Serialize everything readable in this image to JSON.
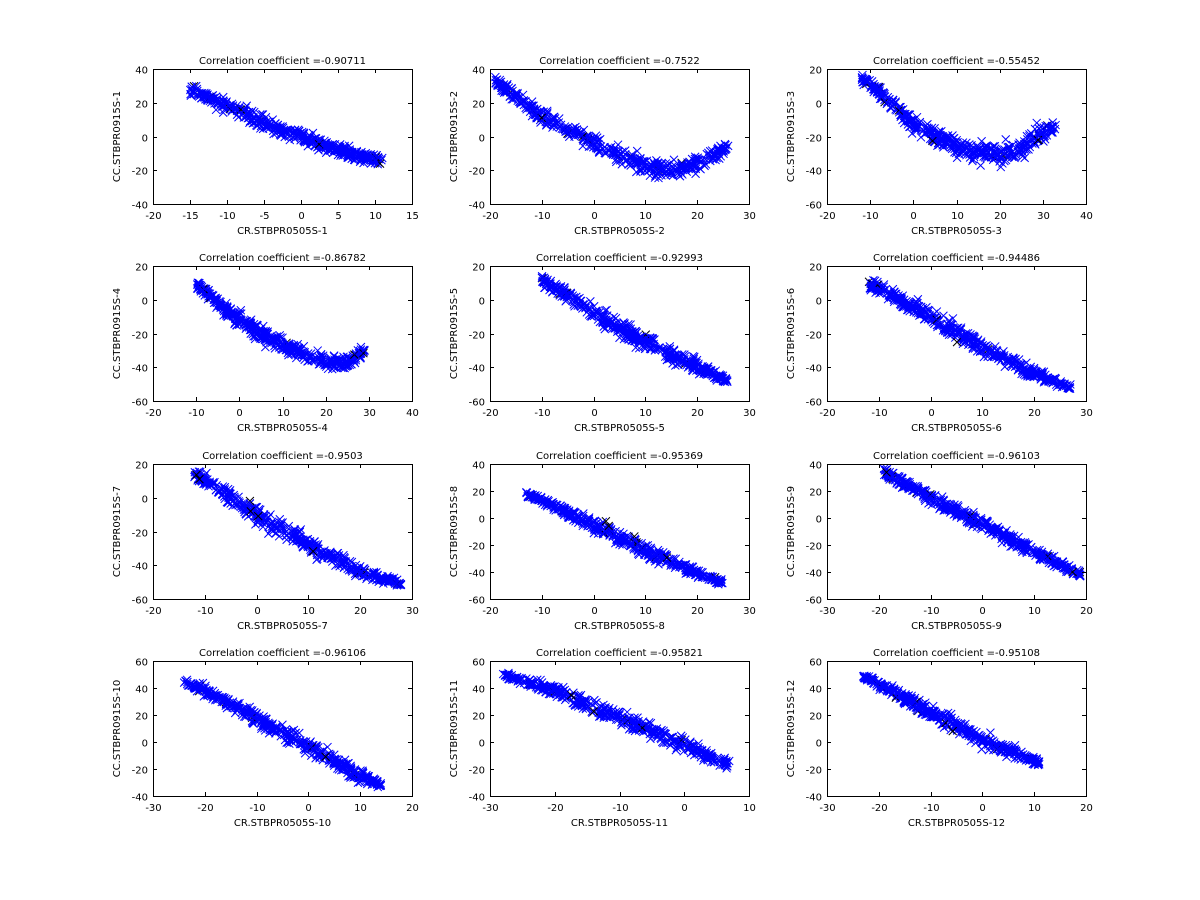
{
  "colors": {
    "points": "#0000ff",
    "outliers": "#000000",
    "axes": "#000000"
  },
  "chart_data": [
    {
      "type": "scatter",
      "title": "Correlation coefficient =-0.90711",
      "xlabel": "CR.STBPR0505S-1",
      "ylabel": "CC.STBPR0915S-1",
      "xlim": [
        -20,
        15
      ],
      "ylim": [
        -40,
        40
      ],
      "xticks": [
        -20,
        -15,
        -10,
        -5,
        0,
        5,
        10,
        15
      ],
      "yticks": [
        -40,
        -20,
        0,
        20,
        40
      ],
      "cloud": [
        [
          -15,
          28,
          6
        ],
        [
          -10,
          18,
          8
        ],
        [
          -5,
          8,
          8
        ],
        [
          0,
          0,
          7
        ],
        [
          5,
          -8,
          7
        ],
        [
          10,
          -14,
          5
        ],
        [
          11,
          -14,
          5
        ]
      ]
    },
    {
      "type": "scatter",
      "title": "Correlation coefficient =-0.7522",
      "xlabel": "CR.STBPR0505S-2",
      "ylabel": "CC.STBPR0915S-2",
      "xlim": [
        -20,
        30
      ],
      "ylim": [
        -40,
        40
      ],
      "xticks": [
        -20,
        -10,
        0,
        10,
        20,
        30
      ],
      "yticks": [
        -40,
        -20,
        0,
        20,
        40
      ],
      "cloud": [
        [
          -19,
          33,
          5
        ],
        [
          -10,
          12,
          8
        ],
        [
          0,
          -4,
          8
        ],
        [
          10,
          -18,
          9
        ],
        [
          15,
          -20,
          9
        ],
        [
          20,
          -15,
          10
        ],
        [
          26,
          -7,
          6
        ]
      ]
    },
    {
      "type": "scatter",
      "title": "Correlation coefficient =-0.55452",
      "xlabel": "CR.STBPR0505S-3",
      "ylabel": "CC.STBPR0915S-3",
      "xlim": [
        -20,
        40
      ],
      "ylim": [
        -60,
        20
      ],
      "xticks": [
        -20,
        -10,
        0,
        10,
        20,
        30,
        40
      ],
      "yticks": [
        -60,
        -40,
        -20,
        0,
        20
      ],
      "cloud": [
        [
          -12,
          15,
          5
        ],
        [
          -5,
          0,
          7
        ],
        [
          0,
          -13,
          9
        ],
        [
          10,
          -26,
          10
        ],
        [
          20,
          -31,
          10
        ],
        [
          25,
          -28,
          10
        ],
        [
          30,
          -18,
          11
        ],
        [
          33,
          -14,
          6
        ]
      ]
    },
    {
      "type": "scatter",
      "title": "Correlation coefficient =-0.86782",
      "xlabel": "CR.STBPR0505S-4",
      "ylabel": "CC.STBPR0915S-4",
      "xlim": [
        -20,
        40
      ],
      "ylim": [
        -60,
        20
      ],
      "xticks": [
        -20,
        -10,
        0,
        10,
        20,
        30,
        40
      ],
      "yticks": [
        -60,
        -40,
        -20,
        0,
        20
      ],
      "cloud": [
        [
          -10,
          10,
          5
        ],
        [
          -5,
          -2,
          7
        ],
        [
          0,
          -12,
          8
        ],
        [
          10,
          -27,
          8
        ],
        [
          20,
          -37,
          7
        ],
        [
          25,
          -37,
          7
        ],
        [
          29,
          -30,
          5
        ]
      ]
    },
    {
      "type": "scatter",
      "title": "Correlation coefficient =-0.92993",
      "xlabel": "CR.STBPR0505S-5",
      "ylabel": "CC.STBPR0915S-5",
      "xlim": [
        -20,
        30
      ],
      "ylim": [
        -60,
        20
      ],
      "xticks": [
        -20,
        -10,
        0,
        10,
        20,
        30
      ],
      "yticks": [
        -60,
        -40,
        -20,
        0,
        20
      ],
      "cloud": [
        [
          -10,
          12,
          6
        ],
        [
          0,
          -8,
          9
        ],
        [
          10,
          -25,
          9
        ],
        [
          20,
          -40,
          7
        ],
        [
          26,
          -48,
          3
        ]
      ]
    },
    {
      "type": "scatter",
      "title": "Correlation coefficient =-0.94486",
      "xlabel": "CR.STBPR0505S-6",
      "ylabel": "CC.STBPR0915S-6",
      "xlim": [
        -20,
        30
      ],
      "ylim": [
        -60,
        20
      ],
      "xticks": [
        -20,
        -10,
        0,
        10,
        20,
        30
      ],
      "yticks": [
        -60,
        -40,
        -20,
        0,
        20
      ],
      "cloud": [
        [
          -12,
          10,
          6
        ],
        [
          0,
          -10,
          9
        ],
        [
          10,
          -28,
          9
        ],
        [
          20,
          -44,
          7
        ],
        [
          27,
          -52,
          3
        ]
      ]
    },
    {
      "type": "scatter",
      "title": "Correlation coefficient =-0.9503",
      "xlabel": "CR.STBPR0505S-7",
      "ylabel": "CC.STBPR0915S-7",
      "xlim": [
        -20,
        30
      ],
      "ylim": [
        -60,
        20
      ],
      "xticks": [
        -20,
        -10,
        0,
        10,
        20,
        30
      ],
      "yticks": [
        -60,
        -40,
        -20,
        0,
        20
      ],
      "cloud": [
        [
          -12,
          14,
          6
        ],
        [
          0,
          -10,
          9
        ],
        [
          10,
          -28,
          9
        ],
        [
          20,
          -44,
          7
        ],
        [
          28,
          -51,
          3
        ]
      ]
    },
    {
      "type": "scatter",
      "title": "Correlation coefficient =-0.95369",
      "xlabel": "CR.STBPR0505S-8",
      "ylabel": "CC.STBPR0915S-8",
      "xlim": [
        -20,
        30
      ],
      "ylim": [
        -60,
        40
      ],
      "xticks": [
        -20,
        -10,
        0,
        10,
        20,
        30
      ],
      "yticks": [
        -60,
        -40,
        -20,
        0,
        20,
        40
      ],
      "cloud": [
        [
          -13,
          18,
          4
        ],
        [
          0,
          -5,
          9
        ],
        [
          10,
          -24,
          9
        ],
        [
          20,
          -41,
          7
        ],
        [
          25,
          -48,
          3
        ]
      ]
    },
    {
      "type": "scatter",
      "title": "Correlation coefficient =-0.96103",
      "xlabel": "CR.STBPR0505S-9",
      "ylabel": "CC.STBPR0915S-9",
      "xlim": [
        -30,
        20
      ],
      "ylim": [
        -60,
        40
      ],
      "xticks": [
        -30,
        -20,
        -10,
        0,
        10,
        20
      ],
      "yticks": [
        -60,
        -40,
        -20,
        0,
        20,
        40
      ],
      "cloud": [
        [
          -19,
          34,
          5
        ],
        [
          -10,
          15,
          9
        ],
        [
          0,
          -5,
          9
        ],
        [
          10,
          -25,
          8
        ],
        [
          19,
          -42,
          4
        ]
      ]
    },
    {
      "type": "scatter",
      "title": "Correlation coefficient =-0.96106",
      "xlabel": "CR.STBPR0505S-10",
      "ylabel": "CC.STBPR0915S-10",
      "xlim": [
        -30,
        20
      ],
      "ylim": [
        -40,
        60
      ],
      "xticks": [
        -30,
        -20,
        -10,
        0,
        10,
        20
      ],
      "yticks": [
        -40,
        -20,
        0,
        20,
        40,
        60
      ],
      "cloud": [
        [
          -24,
          45,
          3
        ],
        [
          -20,
          38,
          7
        ],
        [
          -10,
          18,
          10
        ],
        [
          0,
          -3,
          10
        ],
        [
          10,
          -25,
          9
        ],
        [
          14,
          -32,
          4
        ]
      ]
    },
    {
      "type": "scatter",
      "title": "Correlation coefficient =-0.95821",
      "xlabel": "CR.STBPR0505S-11",
      "ylabel": "CC.STBPR0915S-11",
      "xlim": [
        -30,
        10
      ],
      "ylim": [
        -40,
        60
      ],
      "xticks": [
        -30,
        -20,
        -10,
        0,
        10
      ],
      "yticks": [
        -40,
        -20,
        0,
        20,
        40,
        60
      ],
      "cloud": [
        [
          -28,
          50,
          3
        ],
        [
          -20,
          38,
          8
        ],
        [
          -10,
          18,
          10
        ],
        [
          0,
          -2,
          10
        ],
        [
          7,
          -17,
          7
        ]
      ]
    },
    {
      "type": "scatter",
      "title": "Correlation coefficient =-0.95108",
      "xlabel": "CR.STBPR0505S-12",
      "ylabel": "CC.STBPR0915S-12",
      "xlim": [
        -30,
        20
      ],
      "ylim": [
        -40,
        60
      ],
      "xticks": [
        -30,
        -20,
        -10,
        0,
        10,
        20
      ],
      "yticks": [
        -40,
        -20,
        0,
        20,
        40,
        60
      ],
      "cloud": [
        [
          -23,
          48,
          3
        ],
        [
          -20,
          43,
          6
        ],
        [
          -10,
          22,
          10
        ],
        [
          0,
          2,
          10
        ],
        [
          10,
          -14,
          6
        ],
        [
          11,
          -15,
          4
        ]
      ]
    }
  ]
}
